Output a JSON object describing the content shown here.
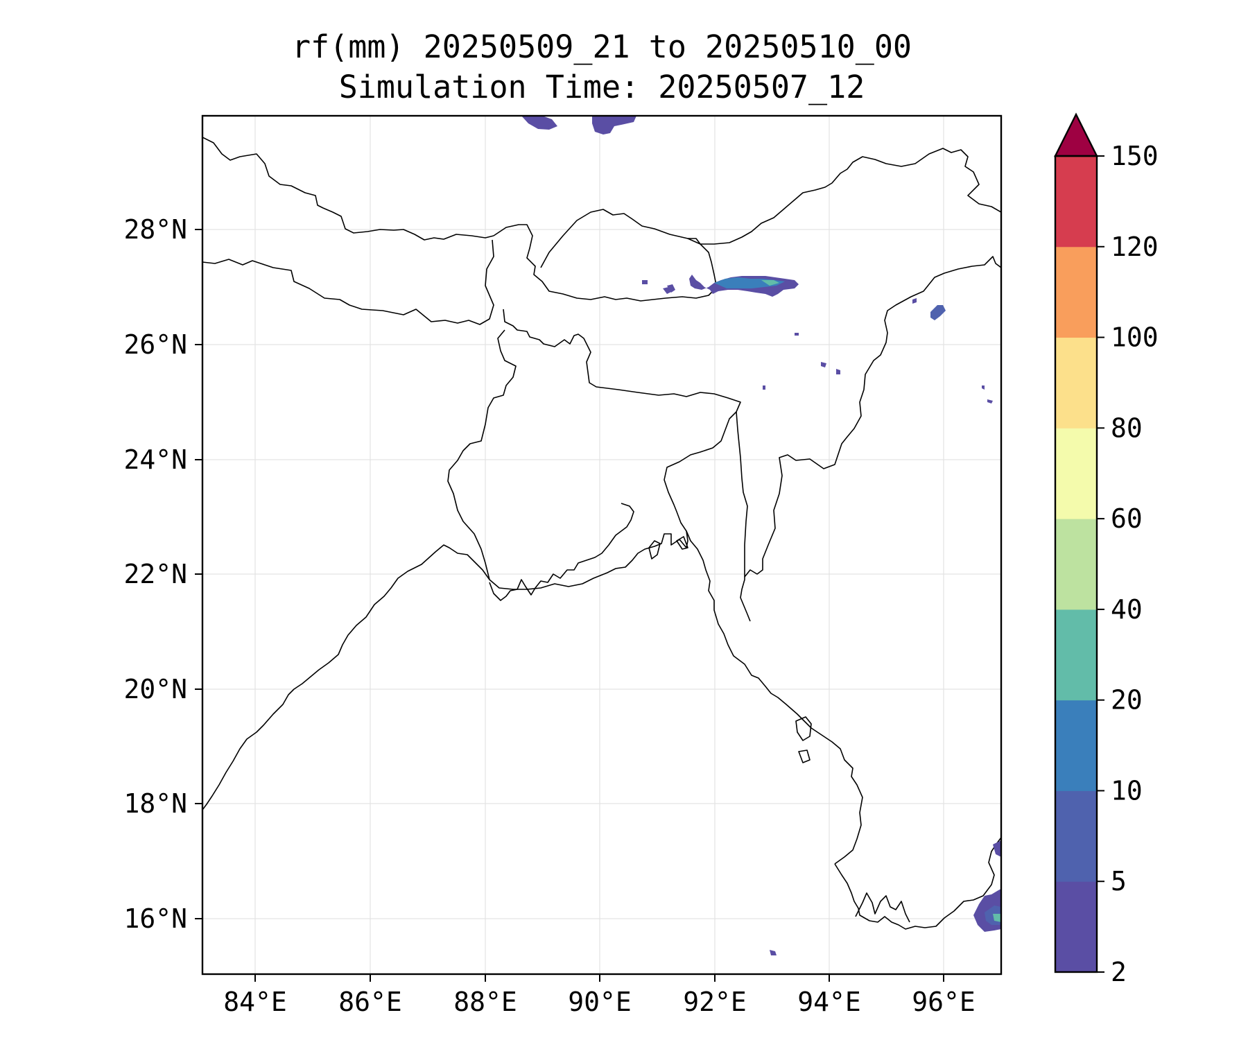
{
  "title": {
    "line1": "rf(mm) 20250509_21 to 20250510_00",
    "line2": "Simulation Time: 20250507_12"
  },
  "map": {
    "lon_range": [
      83.1,
      97.0
    ],
    "lat_range": [
      15.0,
      30.0
    ],
    "lon_ticks": [
      "84°E",
      "86°E",
      "88°E",
      "90°E",
      "92°E",
      "94°E",
      "96°E"
    ],
    "lat_ticks": [
      "28°N",
      "26°N",
      "24°N",
      "22°N",
      "20°N",
      "18°N",
      "16°N"
    ],
    "grid": true,
    "coastline_color": "#000000"
  },
  "colorbar": {
    "tick_labels": [
      "2",
      "5",
      "10",
      "20",
      "40",
      "60",
      "80",
      "100",
      "120",
      "150"
    ],
    "colors": [
      "#5a4ea4",
      "#4f62ae",
      "#3a7fbb",
      "#62bca9",
      "#bde2a0",
      "#f4fbac",
      "#fce08b",
      "#f99e5c",
      "#d63d4f"
    ],
    "extend_color": "#9e0142",
    "extend": "max"
  },
  "precip_cells": [
    {
      "region": "top edge near 89°E",
      "category": "2-5"
    },
    {
      "region": "top edge near 90°E",
      "category": "2-5"
    },
    {
      "region": "Arunachal / Assam border 92-93.5°E",
      "category": "5-20"
    },
    {
      "region": "northeast Myanmar border 96°E",
      "category": "5-10"
    },
    {
      "region": "Gulf of Martaban 96.8°E 16°N",
      "category": "5-20"
    },
    {
      "region": "scattered small cells",
      "category": "2-5"
    }
  ]
}
